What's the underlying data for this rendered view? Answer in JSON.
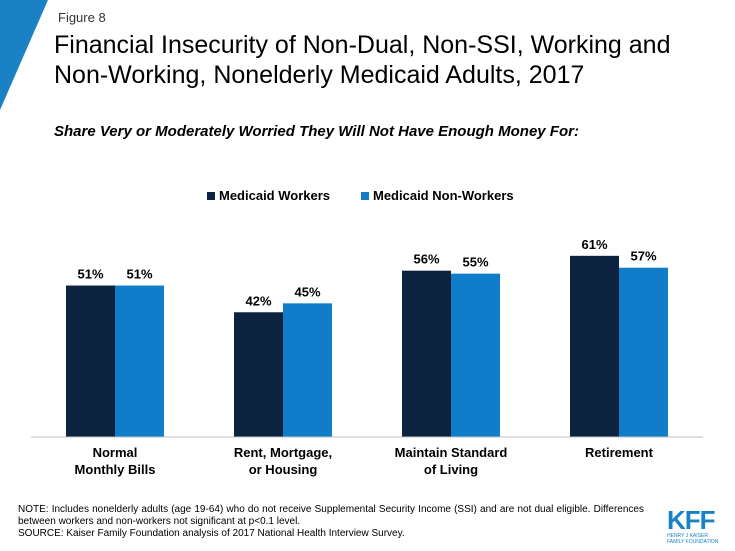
{
  "header": {
    "figure_label": "Figure 8",
    "title": "Financial Insecurity of Non-Dual, Non-SSI, Working and Non-Working, Nonelderly Medicaid Adults, 2017",
    "subtitle": "Share Very or Moderately Worried They Will Not Have Enough Money For:"
  },
  "colors": {
    "workers": "#0c2340",
    "non_workers": "#0f7dc9",
    "accent_corner": "#1a82c4"
  },
  "chart_data": {
    "type": "bar",
    "categories": [
      [
        "Normal",
        "Monthly Bills"
      ],
      [
        "Rent, Mortgage,",
        "or Housing"
      ],
      [
        "Maintain Standard",
        "of Living"
      ],
      [
        "Retirement"
      ]
    ],
    "series": [
      {
        "name": "Medicaid Workers",
        "values": [
          51,
          42,
          56,
          61
        ],
        "labels": [
          "51%",
          "42%",
          "56%",
          "61%"
        ],
        "color": "#0c2340"
      },
      {
        "name": "Medicaid Non-Workers",
        "values": [
          51,
          45,
          55,
          57
        ],
        "labels": [
          "51%",
          "45%",
          "55%",
          "57%"
        ],
        "color": "#0f7dc9"
      }
    ],
    "ylim": [
      0,
      100
    ],
    "grid": false,
    "legend": "top-center"
  },
  "footer": {
    "note": "NOTE: Includes nonelderly adults (age 19-64) who do not receive Supplemental Security Income (SSI) and are not dual eligible. Differences between workers and non-workers not significant at p<0.1 level.",
    "source": "SOURCE: Kaiser Family Foundation analysis of 2017 National Health Interview Survey.",
    "logo_mark": "KFF",
    "logo_line1": "HENRY J KAISER",
    "logo_line2": "FAMILY FOUNDATION"
  }
}
